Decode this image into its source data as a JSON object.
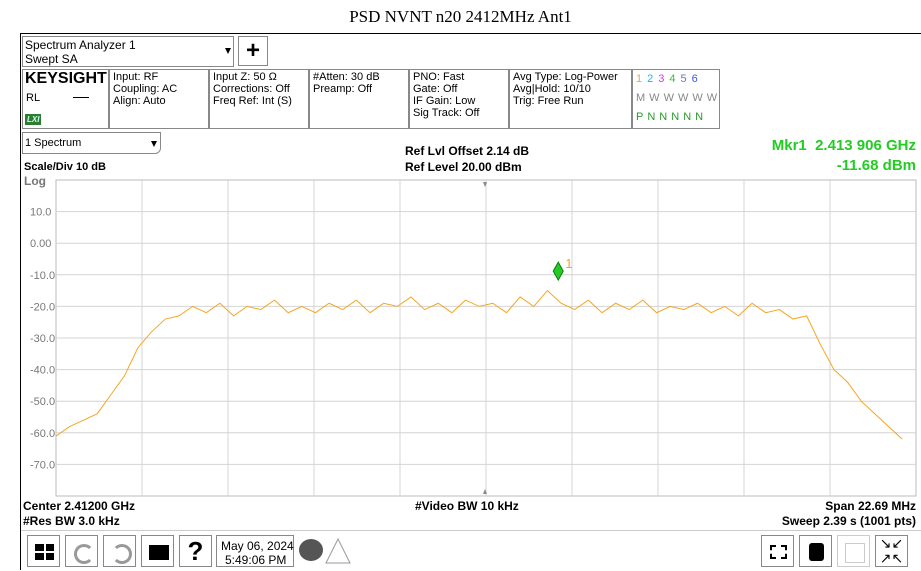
{
  "title": "PSD NVNT n20 2412MHz Ant1",
  "header": {
    "instrument": "Spectrum Analyzer 1",
    "mode": "Swept SA",
    "add_button": "+",
    "brand": "KEYSIGHT",
    "rl": "RL",
    "lxi": "LXI",
    "settings": [
      [
        "Input: RF",
        "Coupling: AC",
        "Align: Auto"
      ],
      [
        "Input Z: 50 Ω",
        "Corrections: Off",
        "Freq Ref: Int (S)"
      ],
      [
        "#Atten: 30 dB",
        "Preamp: Off"
      ],
      [
        "PNO: Fast",
        "Gate: Off",
        "IF Gain: Low",
        "Sig Track: Off"
      ],
      [
        "Avg Type: Log-Power",
        "Avg|Hold: 10/10",
        "Trig: Free Run"
      ]
    ],
    "traces": {
      "numbers": [
        "1",
        "2",
        "3",
        "4",
        "5",
        "6"
      ],
      "colors": [
        "#f5a623",
        "#22b8d8",
        "#d83ad8",
        "#3cb83c",
        "#5a7ae8",
        "#3a5ad8"
      ],
      "modes": [
        "M",
        "W",
        "W",
        "W",
        "W",
        "W"
      ],
      "detectors": [
        "P",
        "N",
        "N",
        "N",
        "N",
        "N"
      ]
    }
  },
  "panel": {
    "window": "1 Spectrum",
    "scale": "Scale/Div 10 dB",
    "scale_type": "Log",
    "ref_offset": "Ref Lvl Offset 2.14 dB",
    "ref_level": "Ref Level 20.00 dBm",
    "marker_freq": "Mkr1  2.413 906 GHz",
    "marker_level": "-11.68 dBm"
  },
  "footer": {
    "center": "Center 2.41200 GHz",
    "rbw": "#Res BW 3.0 kHz",
    "vbw": "#Video BW 10 kHz",
    "span": "Span 22.69 MHz",
    "sweep": "Sweep 2.39 s (1001 pts)"
  },
  "taskbar": {
    "date": "May 06, 2024",
    "time": "5:49:06 PM",
    "help": "?"
  },
  "chart_data": {
    "type": "line",
    "color": "#f5a623",
    "grid": true,
    "xlim": [
      2400.655,
      2423.345
    ],
    "ylim": [
      -80,
      20
    ],
    "yticks": [
      {
        "value": 10,
        "label": "10.0"
      },
      {
        "value": 0,
        "label": "0.00"
      },
      {
        "value": -10,
        "label": "-10.0"
      },
      {
        "value": -20,
        "label": "-20.0"
      },
      {
        "value": -30,
        "label": "-30.0"
      },
      {
        "value": -40,
        "label": "-40.0"
      },
      {
        "value": -50,
        "label": "-50.0"
      },
      {
        "value": -60,
        "label": "-60.0"
      },
      {
        "value": -70,
        "label": "-70.0"
      }
    ],
    "x": [
      2400.66,
      2401.02,
      2401.38,
      2401.74,
      2402.1,
      2402.46,
      2402.82,
      2403.18,
      2403.54,
      2403.9,
      2404.26,
      2404.62,
      2404.98,
      2405.34,
      2405.7,
      2406.06,
      2406.42,
      2406.78,
      2407.14,
      2407.5,
      2407.86,
      2408.22,
      2408.58,
      2408.94,
      2409.3,
      2409.66,
      2410.02,
      2410.38,
      2410.74,
      2411.1,
      2411.46,
      2411.82,
      2412.18,
      2412.54,
      2412.9,
      2413.26,
      2413.62,
      2413.98,
      2414.34,
      2414.7,
      2415.06,
      2415.42,
      2415.78,
      2416.14,
      2416.5,
      2416.86,
      2417.22,
      2417.58,
      2417.94,
      2418.3,
      2418.66,
      2419.02,
      2419.38,
      2419.74,
      2420.1,
      2420.46,
      2420.82,
      2421.18,
      2421.54,
      2421.9,
      2422.26,
      2422.62,
      2422.98
    ],
    "values": [
      -61,
      -58,
      -56,
      -54,
      -48,
      -42,
      -33,
      -28,
      -24,
      -23,
      -20,
      -22,
      -19,
      -23,
      -20,
      -21,
      -18,
      -22,
      -20,
      -22,
      -19,
      -21,
      -18,
      -22,
      -19,
      -20,
      -17,
      -21,
      -19,
      -22,
      -18,
      -20,
      -19,
      -22,
      -17,
      -20,
      -15,
      -19,
      -21,
      -18,
      -22,
      -19,
      -21,
      -18,
      -22,
      -20,
      -21,
      -19,
      -22,
      -20,
      -23,
      -19,
      -22,
      -21,
      -24,
      -23,
      -32,
      -40,
      -44,
      -50,
      -54,
      -58,
      -62
    ],
    "marker": {
      "label": "1",
      "x": 2413.906,
      "y": -11.68,
      "color": "#22cc22"
    }
  }
}
